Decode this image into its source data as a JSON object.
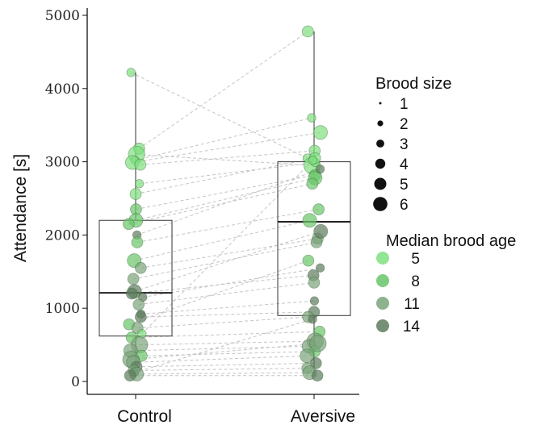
{
  "chart_data": {
    "type": "scatter",
    "subtype": "paired box plot with jittered points",
    "title": "",
    "xlabel": "",
    "ylabel": "Attendance [s]",
    "categories": [
      "Control",
      "Aversive"
    ],
    "ylim": [
      0,
      5000
    ],
    "yticks": [
      0,
      1000,
      2000,
      3000,
      4000,
      5000
    ],
    "grid": false,
    "legend_position": "right",
    "boxes": [
      {
        "category": "Control",
        "min": 80,
        "q1": 620,
        "median": 1210,
        "q3": 2200,
        "max": 4220
      },
      {
        "category": "Aversive",
        "min": 80,
        "q1": 900,
        "median": 2180,
        "q3": 3000,
        "max": 4780
      }
    ],
    "size_legend": {
      "title": "Brood size",
      "values": [
        1,
        2,
        3,
        4,
        5,
        6
      ]
    },
    "color_legend": {
      "title": "Median brood age",
      "values": [
        5,
        8,
        11,
        14
      ],
      "colors": [
        "#7fe07f",
        "#69c669",
        "#7aa47a",
        "#5e7c5e"
      ]
    },
    "pairs": [
      {
        "control": 4220,
        "aversive": 3050,
        "size": 2,
        "age": 5
      },
      {
        "control": 3180,
        "aversive": 4780,
        "size": 3,
        "age": 5
      },
      {
        "control": 3100,
        "aversive": 2950,
        "size": 5,
        "age": 6
      },
      {
        "control": 3020,
        "aversive": 3600,
        "size": 2,
        "age": 5
      },
      {
        "control": 2990,
        "aversive": 3400,
        "size": 4,
        "age": 5
      },
      {
        "control": 2960,
        "aversive": 3150,
        "size": 3,
        "age": 6
      },
      {
        "control": 2700,
        "aversive": 2990,
        "size": 2,
        "age": 6
      },
      {
        "control": 2560,
        "aversive": 3050,
        "size": 3,
        "age": 6
      },
      {
        "control": 2350,
        "aversive": 2820,
        "size": 3,
        "age": 7
      },
      {
        "control": 2200,
        "aversive": 2780,
        "size": 4,
        "age": 7
      },
      {
        "control": 2150,
        "aversive": 2700,
        "size": 3,
        "age": 8
      },
      {
        "control": 2000,
        "aversive": 2900,
        "size": 2,
        "age": 13
      },
      {
        "control": 1900,
        "aversive": 2350,
        "size": 3,
        "age": 9
      },
      {
        "control": 1650,
        "aversive": 2200,
        "size": 4,
        "age": 9
      },
      {
        "control": 1550,
        "aversive": 1950,
        "size": 3,
        "age": 10
      },
      {
        "control": 1400,
        "aversive": 1900,
        "size": 3,
        "age": 10
      },
      {
        "control": 1230,
        "aversive": 2050,
        "size": 4,
        "age": 14
      },
      {
        "control": 1200,
        "aversive": 1450,
        "size": 3,
        "age": 14
      },
      {
        "control": 1150,
        "aversive": 1550,
        "size": 2,
        "age": 13
      },
      {
        "control": 1050,
        "aversive": 1350,
        "size": 3,
        "age": 12
      },
      {
        "control": 920,
        "aversive": 1100,
        "size": 2,
        "age": 13
      },
      {
        "control": 880,
        "aversive": 950,
        "size": 3,
        "age": 14
      },
      {
        "control": 780,
        "aversive": 1650,
        "size": 3,
        "age": 8
      },
      {
        "control": 730,
        "aversive": 880,
        "size": 3,
        "age": 11
      },
      {
        "control": 650,
        "aversive": 3020,
        "size": 2,
        "age": 6
      },
      {
        "control": 600,
        "aversive": 680,
        "size": 3,
        "age": 9
      },
      {
        "control": 500,
        "aversive": 550,
        "size": 5,
        "age": 12
      },
      {
        "control": 420,
        "aversive": 480,
        "size": 4,
        "age": 10
      },
      {
        "control": 350,
        "aversive": 410,
        "size": 3,
        "age": 7
      },
      {
        "control": 300,
        "aversive": 520,
        "size": 5,
        "age": 11
      },
      {
        "control": 260,
        "aversive": 350,
        "size": 4,
        "age": 12
      },
      {
        "control": 200,
        "aversive": 250,
        "size": 3,
        "age": 13
      },
      {
        "control": 150,
        "aversive": 180,
        "size": 3,
        "age": 12
      },
      {
        "control": 120,
        "aversive": 850,
        "size": 2,
        "age": 14
      },
      {
        "control": 100,
        "aversive": 120,
        "size": 4,
        "age": 11
      },
      {
        "control": 80,
        "aversive": 80,
        "size": 3,
        "age": 13
      }
    ]
  }
}
